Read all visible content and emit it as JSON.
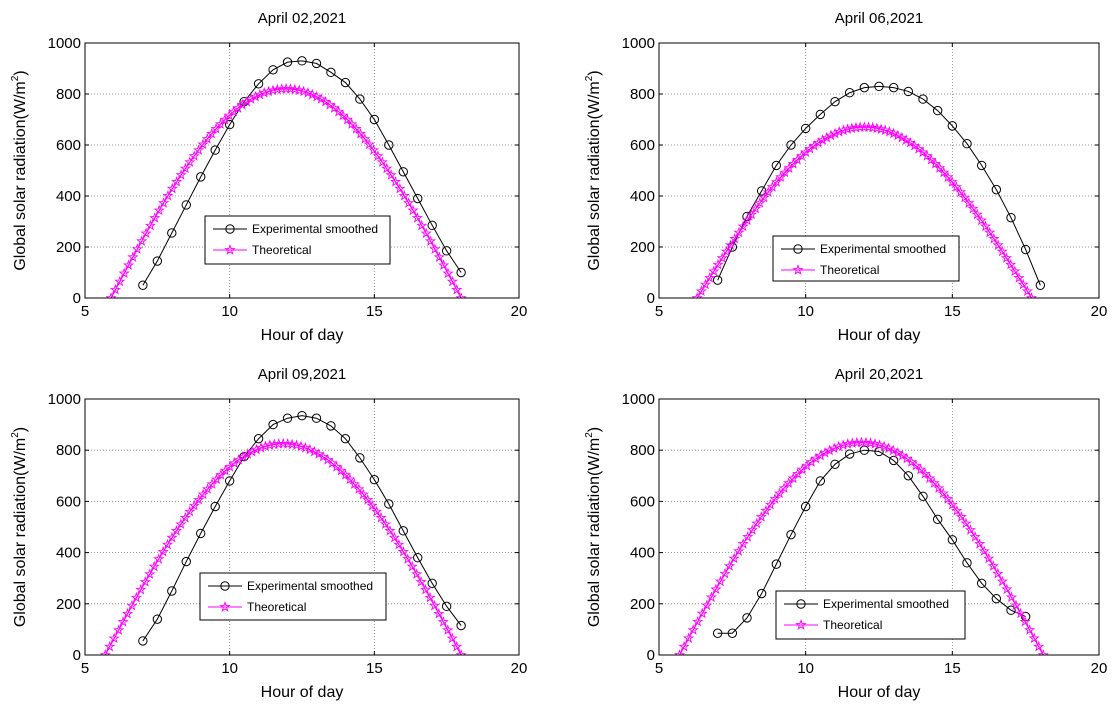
{
  "chart_data": [
    {
      "type": "line",
      "title": "April 02,2021",
      "xlabel": "Hour of day",
      "ylabel": "Global solar radiation(W/m",
      "ylabel_sup": "2",
      "ylabel_close": ")",
      "xlim": [
        5,
        20
      ],
      "ylim": [
        0,
        1000
      ],
      "xticks": [
        "5",
        "10",
        "15",
        "20"
      ],
      "yticks": [
        "0",
        "200",
        "400",
        "600",
        "800",
        "1000"
      ],
      "grid": true,
      "legend_position": "lower-center",
      "series": [
        {
          "name": "Experimental smoothed",
          "color": "#000000",
          "marker": "circle",
          "x": [
            7,
            7.5,
            8,
            8.5,
            9,
            9.5,
            10,
            10.5,
            11,
            11.5,
            12,
            12.5,
            13,
            13.5,
            14,
            14.5,
            15,
            15.5,
            16,
            16.5,
            17,
            17.5,
            18
          ],
          "y": [
            50,
            145,
            255,
            365,
            475,
            580,
            680,
            770,
            840,
            895,
            925,
            930,
            920,
            885,
            845,
            780,
            700,
            600,
            495,
            390,
            285,
            185,
            100
          ]
        },
        {
          "name": "Theoretical",
          "color": "#ff00ff",
          "marker": "star",
          "model": {
            "t0": 5.9,
            "t1": 18.0,
            "peak": 820
          }
        }
      ]
    },
    {
      "type": "line",
      "title": "April 06,2021",
      "xlabel": "Hour of day",
      "ylabel": "Global solar radiation(W/m",
      "ylabel_sup": "2",
      "ylabel_close": ")",
      "xlim": [
        5,
        20
      ],
      "ylim": [
        0,
        1000
      ],
      "xticks": [
        "5",
        "10",
        "15",
        "20"
      ],
      "yticks": [
        "0",
        "200",
        "400",
        "600",
        "800",
        "1000"
      ],
      "grid": true,
      "legend_position": "lower-right",
      "series": [
        {
          "name": "Experimental smoothed",
          "color": "#000000",
          "marker": "circle",
          "x": [
            7,
            7.5,
            8,
            8.5,
            9,
            9.5,
            10,
            10.5,
            11,
            11.5,
            12,
            12.5,
            13,
            13.5,
            14,
            14.5,
            15,
            15.5,
            16,
            16.5,
            17,
            17.5,
            18
          ],
          "y": [
            70,
            200,
            320,
            420,
            520,
            600,
            665,
            720,
            770,
            805,
            825,
            830,
            825,
            810,
            780,
            735,
            675,
            605,
            520,
            425,
            315,
            190,
            50
          ]
        },
        {
          "name": "Theoretical",
          "color": "#ff00ff",
          "marker": "star",
          "model": {
            "t0": 6.3,
            "t1": 17.7,
            "peak": 670
          }
        }
      ]
    },
    {
      "type": "line",
      "title": "April 09,2021",
      "xlabel": "Hour of day",
      "ylabel": "Global solar radiation(W/m",
      "ylabel_sup": "2",
      "ylabel_close": ")",
      "xlim": [
        5,
        20
      ],
      "ylim": [
        0,
        1000
      ],
      "xticks": [
        "5",
        "10",
        "15",
        "20"
      ],
      "yticks": [
        "0",
        "200",
        "400",
        "600",
        "800",
        "1000"
      ],
      "grid": true,
      "legend_position": "lower-center",
      "series": [
        {
          "name": "Experimental smoothed",
          "color": "#000000",
          "marker": "circle",
          "x": [
            7,
            7.5,
            8,
            8.5,
            9,
            9.5,
            10,
            10.5,
            11,
            11.5,
            12,
            12.5,
            13,
            13.5,
            14,
            14.5,
            15,
            15.5,
            16,
            16.5,
            17,
            17.5,
            18
          ],
          "y": [
            55,
            140,
            250,
            365,
            475,
            580,
            680,
            775,
            845,
            900,
            925,
            935,
            925,
            895,
            845,
            770,
            685,
            590,
            485,
            380,
            280,
            190,
            115
          ]
        },
        {
          "name": "Theoretical",
          "color": "#ff00ff",
          "marker": "star",
          "model": {
            "t0": 5.7,
            "t1": 18.0,
            "peak": 825
          }
        }
      ]
    },
    {
      "type": "line",
      "title": "April 20,2021",
      "xlabel": "Hour of day",
      "ylabel": "Global solar radiation(W/m",
      "ylabel_sup": "2",
      "ylabel_close": ")",
      "xlim": [
        5,
        20
      ],
      "ylim": [
        0,
        1000
      ],
      "xticks": [
        "5",
        "10",
        "15",
        "20"
      ],
      "yticks": [
        "0",
        "200",
        "400",
        "600",
        "800",
        "1000"
      ],
      "grid": true,
      "legend_position": "lower-center",
      "series": [
        {
          "name": "Experimental smoothed",
          "color": "#000000",
          "marker": "circle",
          "x": [
            7,
            7.5,
            8,
            8.5,
            9,
            9.5,
            10,
            10.5,
            11,
            11.5,
            12,
            12.5,
            13,
            13.5,
            14,
            14.5,
            15,
            15.5,
            16,
            16.5,
            17,
            17.5
          ],
          "y": [
            85,
            85,
            145,
            240,
            355,
            470,
            580,
            680,
            745,
            785,
            800,
            795,
            760,
            700,
            620,
            530,
            450,
            360,
            280,
            220,
            175,
            150
          ]
        },
        {
          "name": "Theoretical",
          "color": "#ff00ff",
          "marker": "star",
          "model": {
            "t0": 5.7,
            "t1": 18.1,
            "peak": 830
          }
        }
      ]
    }
  ]
}
